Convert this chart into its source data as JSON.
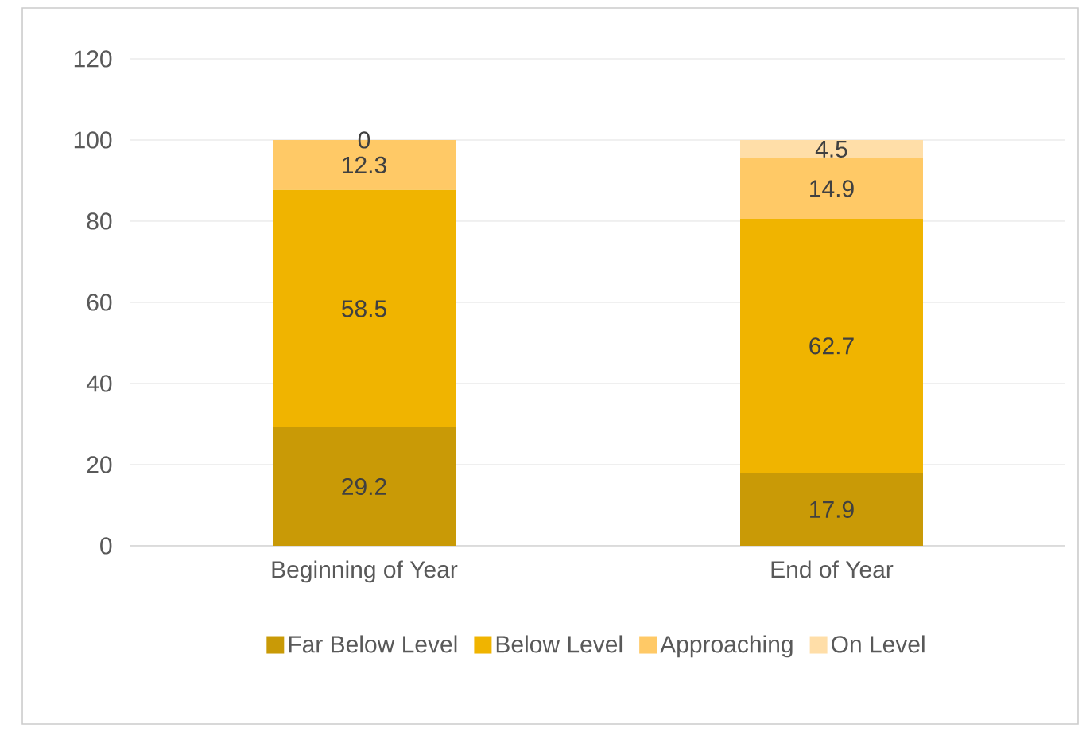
{
  "chart_data": {
    "type": "bar",
    "stacked": true,
    "categories": [
      "Beginning of Year",
      "End of Year"
    ],
    "series": [
      {
        "name": "Far Below Level",
        "color": "#c99a06",
        "values": [
          29.2,
          17.9
        ]
      },
      {
        "name": "Below Level",
        "color": "#f0b400",
        "values": [
          58.5,
          62.7
        ]
      },
      {
        "name": "Approaching",
        "color": "#ffc966",
        "values": [
          12.3,
          14.9
        ]
      },
      {
        "name": "On Level",
        "color": "#ffdea8",
        "values": [
          0,
          4.5
        ]
      }
    ],
    "ylim": [
      0,
      120
    ],
    "yticks": [
      0,
      20,
      40,
      60,
      80,
      100,
      120
    ],
    "grid": "y",
    "legend": "bottom",
    "data_labels": true
  }
}
